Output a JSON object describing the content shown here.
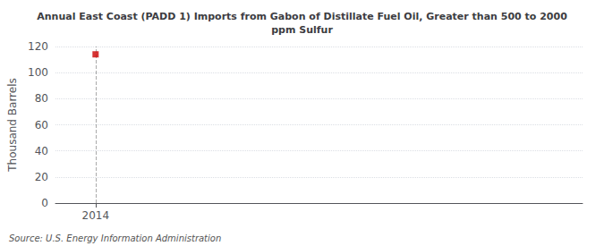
{
  "chart_data": {
    "type": "scatter",
    "title": "Annual East Coast (PADD 1) Imports from Gabon of Distillate Fuel Oil, Greater than 500 to 2000\nppm Sulfur",
    "ylabel": "Thousand Barrels",
    "x": [
      2014
    ],
    "values": [
      114
    ],
    "color": "#cc0000",
    "marker": "square",
    "xlim": [
      2013.3,
      2022.5
    ],
    "xticks": [
      2014
    ],
    "ylim": [
      0,
      120
    ],
    "yticks": [
      0,
      20,
      40,
      60,
      80,
      100,
      120
    ],
    "grid": true,
    "annotations": [
      "Source: U.S. Energy Information Administration"
    ]
  }
}
